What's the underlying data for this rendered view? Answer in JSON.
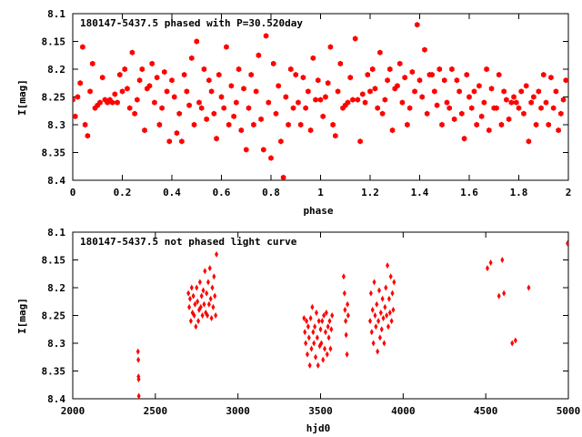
{
  "chart_data": [
    {
      "type": "scatter",
      "title": "180147-5437.5 phased with P=30.520day",
      "xlabel": "phase",
      "ylabel": "I[mag]",
      "xlim": [
        0,
        2
      ],
      "ylim": [
        8.4,
        8.1
      ],
      "y_inverted": true,
      "grid": false,
      "marker": "filled-hexagon",
      "color": "#ff0000",
      "x_ticks": [
        "0",
        "0.2",
        "0.4",
        "0.6",
        "0.8",
        "1",
        "1.2",
        "1.4",
        "1.6",
        "1.8",
        "2"
      ],
      "y_ticks": [
        "8.1",
        "8.15",
        "8.2",
        "8.25",
        "8.3",
        "8.35",
        "8.4"
      ],
      "points": [
        [
          0.0,
          8.255
        ],
        [
          0.01,
          8.285
        ],
        [
          0.02,
          8.25
        ],
        [
          0.03,
          8.225
        ],
        [
          0.04,
          8.16
        ],
        [
          0.05,
          8.3
        ],
        [
          0.06,
          8.32
        ],
        [
          0.07,
          8.24
        ],
        [
          0.08,
          8.19
        ],
        [
          0.09,
          8.27
        ],
        [
          0.1,
          8.265
        ],
        [
          0.11,
          8.26
        ],
        [
          0.12,
          8.215
        ],
        [
          0.13,
          8.255
        ],
        [
          0.14,
          8.26
        ],
        [
          0.15,
          8.255
        ],
        [
          0.16,
          8.26
        ],
        [
          0.17,
          8.245
        ],
        [
          0.18,
          8.26
        ],
        [
          0.19,
          8.21
        ],
        [
          0.2,
          8.24
        ],
        [
          0.21,
          8.2
        ],
        [
          0.22,
          8.235
        ],
        [
          0.23,
          8.27
        ],
        [
          0.24,
          8.17
        ],
        [
          0.25,
          8.28
        ],
        [
          0.26,
          8.255
        ],
        [
          0.27,
          8.22
        ],
        [
          0.28,
          8.2
        ],
        [
          0.29,
          8.31
        ],
        [
          0.3,
          8.235
        ],
        [
          0.31,
          8.23
        ],
        [
          0.32,
          8.19
        ],
        [
          0.33,
          8.26
        ],
        [
          0.34,
          8.215
        ],
        [
          0.35,
          8.3
        ],
        [
          0.36,
          8.27
        ],
        [
          0.37,
          8.205
        ],
        [
          0.38,
          8.24
        ],
        [
          0.39,
          8.33
        ],
        [
          0.4,
          8.22
        ],
        [
          0.41,
          8.25
        ],
        [
          0.42,
          8.315
        ],
        [
          0.43,
          8.28
        ],
        [
          0.44,
          8.33
        ],
        [
          0.45,
          8.21
        ],
        [
          0.46,
          8.24
        ],
        [
          0.47,
          8.265
        ],
        [
          0.48,
          8.18
        ],
        [
          0.49,
          8.3
        ],
        [
          0.5,
          8.15
        ],
        [
          0.51,
          8.26
        ],
        [
          0.52,
          8.27
        ],
        [
          0.53,
          8.2
        ],
        [
          0.54,
          8.29
        ],
        [
          0.55,
          8.22
        ],
        [
          0.56,
          8.24
        ],
        [
          0.57,
          8.28
        ],
        [
          0.58,
          8.325
        ],
        [
          0.59,
          8.21
        ],
        [
          0.6,
          8.25
        ],
        [
          0.61,
          8.27
        ],
        [
          0.62,
          8.16
        ],
        [
          0.63,
          8.3
        ],
        [
          0.64,
          8.23
        ],
        [
          0.65,
          8.285
        ],
        [
          0.66,
          8.26
        ],
        [
          0.67,
          8.2
        ],
        [
          0.68,
          8.31
        ],
        [
          0.69,
          8.235
        ],
        [
          0.7,
          8.345
        ],
        [
          0.71,
          8.27
        ],
        [
          0.72,
          8.21
        ],
        [
          0.73,
          8.3
        ],
        [
          0.74,
          8.24
        ],
        [
          0.75,
          8.175
        ],
        [
          0.76,
          8.29
        ],
        [
          0.77,
          8.345
        ],
        [
          0.78,
          8.14
        ],
        [
          0.79,
          8.26
        ],
        [
          0.8,
          8.36
        ],
        [
          0.81,
          8.19
        ],
        [
          0.82,
          8.28
        ],
        [
          0.83,
          8.23
        ],
        [
          0.84,
          8.33
        ],
        [
          0.85,
          8.395
        ],
        [
          0.86,
          8.25
        ],
        [
          0.87,
          8.3
        ],
        [
          0.88,
          8.2
        ],
        [
          0.89,
          8.27
        ],
        [
          0.9,
          8.21
        ],
        [
          0.91,
          8.26
        ],
        [
          0.92,
          8.3
        ],
        [
          0.93,
          8.215
        ],
        [
          0.94,
          8.27
        ],
        [
          0.95,
          8.24
        ],
        [
          0.96,
          8.31
        ],
        [
          0.97,
          8.18
        ],
        [
          0.98,
          8.255
        ],
        [
          0.99,
          8.22
        ],
        [
          1.0,
          8.255
        ],
        [
          1.01,
          8.285
        ],
        [
          1.02,
          8.25
        ],
        [
          1.03,
          8.225
        ],
        [
          1.04,
          8.16
        ],
        [
          1.05,
          8.3
        ],
        [
          1.06,
          8.32
        ],
        [
          1.07,
          8.24
        ],
        [
          1.08,
          8.19
        ],
        [
          1.09,
          8.27
        ],
        [
          1.1,
          8.265
        ],
        [
          1.11,
          8.26
        ],
        [
          1.12,
          8.215
        ],
        [
          1.13,
          8.255
        ],
        [
          1.14,
          8.145
        ],
        [
          1.15,
          8.255
        ],
        [
          1.16,
          8.33
        ],
        [
          1.17,
          8.245
        ],
        [
          1.18,
          8.26
        ],
        [
          1.19,
          8.21
        ],
        [
          1.2,
          8.24
        ],
        [
          1.21,
          8.2
        ],
        [
          1.22,
          8.235
        ],
        [
          1.23,
          8.27
        ],
        [
          1.24,
          8.17
        ],
        [
          1.25,
          8.28
        ],
        [
          1.26,
          8.255
        ],
        [
          1.27,
          8.22
        ],
        [
          1.28,
          8.2
        ],
        [
          1.29,
          8.31
        ],
        [
          1.3,
          8.235
        ],
        [
          1.31,
          8.23
        ],
        [
          1.32,
          8.19
        ],
        [
          1.33,
          8.26
        ],
        [
          1.34,
          8.215
        ],
        [
          1.35,
          8.3
        ],
        [
          1.36,
          8.27
        ],
        [
          1.37,
          8.205
        ],
        [
          1.38,
          8.24
        ],
        [
          1.39,
          8.12
        ],
        [
          1.4,
          8.22
        ],
        [
          1.41,
          8.25
        ],
        [
          1.42,
          8.165
        ],
        [
          1.43,
          8.28
        ],
        [
          1.44,
          8.21
        ],
        [
          1.45,
          8.21
        ],
        [
          1.46,
          8.24
        ],
        [
          1.47,
          8.265
        ],
        [
          1.48,
          8.2
        ],
        [
          1.49,
          8.3
        ],
        [
          1.5,
          8.22
        ],
        [
          1.51,
          8.26
        ],
        [
          1.52,
          8.27
        ],
        [
          1.53,
          8.2
        ],
        [
          1.54,
          8.29
        ],
        [
          1.55,
          8.22
        ],
        [
          1.56,
          8.24
        ],
        [
          1.57,
          8.28
        ],
        [
          1.58,
          8.325
        ],
        [
          1.59,
          8.21
        ],
        [
          1.6,
          8.25
        ],
        [
          1.61,
          8.27
        ],
        [
          1.62,
          8.24
        ],
        [
          1.63,
          8.3
        ],
        [
          1.64,
          8.23
        ],
        [
          1.65,
          8.285
        ],
        [
          1.66,
          8.26
        ],
        [
          1.67,
          8.2
        ],
        [
          1.68,
          8.31
        ],
        [
          1.69,
          8.235
        ],
        [
          1.7,
          8.27
        ],
        [
          1.71,
          8.27
        ],
        [
          1.72,
          8.21
        ],
        [
          1.73,
          8.3
        ],
        [
          1.74,
          8.24
        ],
        [
          1.75,
          8.255
        ],
        [
          1.76,
          8.29
        ],
        [
          1.77,
          8.26
        ],
        [
          1.78,
          8.25
        ],
        [
          1.79,
          8.26
        ],
        [
          1.8,
          8.27
        ],
        [
          1.81,
          8.24
        ],
        [
          1.82,
          8.28
        ],
        [
          1.83,
          8.23
        ],
        [
          1.84,
          8.33
        ],
        [
          1.85,
          8.26
        ],
        [
          1.86,
          8.25
        ],
        [
          1.87,
          8.3
        ],
        [
          1.88,
          8.24
        ],
        [
          1.89,
          8.27
        ],
        [
          1.9,
          8.21
        ],
        [
          1.91,
          8.26
        ],
        [
          1.92,
          8.3
        ],
        [
          1.93,
          8.215
        ],
        [
          1.94,
          8.27
        ],
        [
          1.95,
          8.24
        ],
        [
          1.96,
          8.31
        ],
        [
          1.97,
          8.28
        ],
        [
          1.98,
          8.255
        ],
        [
          1.99,
          8.22
        ]
      ]
    },
    {
      "type": "scatter",
      "title": "180147-5437.5 not phased light curve",
      "xlabel": "hjd0",
      "ylabel": "I[mag]",
      "xlim": [
        2000,
        5000
      ],
      "ylim": [
        8.4,
        8.1
      ],
      "y_inverted": true,
      "grid": false,
      "marker": "filled-diamond",
      "color": "#ff0000",
      "x_ticks": [
        "2000",
        "2500",
        "3000",
        "3500",
        "4000",
        "4500",
        "5000"
      ],
      "y_ticks": [
        "8.1",
        "8.15",
        "8.2",
        "8.25",
        "8.3",
        "8.35",
        "8.4"
      ],
      "points": [
        [
          2395,
          8.315
        ],
        [
          2397,
          8.33
        ],
        [
          2398,
          8.36
        ],
        [
          2399,
          8.365
        ],
        [
          2400,
          8.395
        ],
        [
          2700,
          8.21
        ],
        [
          2705,
          8.235
        ],
        [
          2710,
          8.22
        ],
        [
          2715,
          8.26
        ],
        [
          2720,
          8.2
        ],
        [
          2725,
          8.245
        ],
        [
          2730,
          8.215
        ],
        [
          2735,
          8.25
        ],
        [
          2740,
          8.23
        ],
        [
          2745,
          8.27
        ],
        [
          2750,
          8.2
        ],
        [
          2755,
          8.225
        ],
        [
          2760,
          8.26
        ],
        [
          2765,
          8.24
        ],
        [
          2770,
          8.19
        ],
        [
          2775,
          8.235
        ],
        [
          2780,
          8.215
        ],
        [
          2785,
          8.25
        ],
        [
          2790,
          8.205
        ],
        [
          2795,
          8.23
        ],
        [
          2800,
          8.17
        ],
        [
          2805,
          8.245
        ],
        [
          2810,
          8.21
        ],
        [
          2815,
          8.25
        ],
        [
          2820,
          8.19
        ],
        [
          2825,
          8.23
        ],
        [
          2830,
          8.165
        ],
        [
          2835,
          8.22
        ],
        [
          2840,
          8.255
        ],
        [
          2845,
          8.2
        ],
        [
          2850,
          8.235
        ],
        [
          2855,
          8.18
        ],
        [
          2860,
          8.215
        ],
        [
          2865,
          8.25
        ],
        [
          2870,
          8.14
        ],
        [
          3400,
          8.255
        ],
        [
          3405,
          8.28
        ],
        [
          3410,
          8.3
        ],
        [
          3415,
          8.26
        ],
        [
          3420,
          8.32
        ],
        [
          3425,
          8.27
        ],
        [
          3430,
          8.29
        ],
        [
          3435,
          8.34
        ],
        [
          3440,
          8.255
        ],
        [
          3445,
          8.31
        ],
        [
          3450,
          8.235
        ],
        [
          3455,
          8.28
        ],
        [
          3460,
          8.3
        ],
        [
          3465,
          8.27
        ],
        [
          3470,
          8.325
        ],
        [
          3475,
          8.245
        ],
        [
          3480,
          8.29
        ],
        [
          3485,
          8.34
        ],
        [
          3490,
          8.26
        ],
        [
          3495,
          8.305
        ],
        [
          3500,
          8.275
        ],
        [
          3505,
          8.3
        ],
        [
          3510,
          8.26
        ],
        [
          3515,
          8.33
        ],
        [
          3520,
          8.25
        ],
        [
          3525,
          8.31
        ],
        [
          3530,
          8.28
        ],
        [
          3535,
          8.245
        ],
        [
          3540,
          8.32
        ],
        [
          3545,
          8.27
        ],
        [
          3550,
          8.29
        ],
        [
          3555,
          8.26
        ],
        [
          3560,
          8.31
        ],
        [
          3565,
          8.275
        ],
        [
          3570,
          8.25
        ],
        [
          3640,
          8.18
        ],
        [
          3645,
          8.21
        ],
        [
          3648,
          8.24
        ],
        [
          3652,
          8.26
        ],
        [
          3655,
          8.285
        ],
        [
          3660,
          8.32
        ],
        [
          3663,
          8.23
        ],
        [
          3667,
          8.25
        ],
        [
          3800,
          8.26
        ],
        [
          3805,
          8.21
        ],
        [
          3810,
          8.28
        ],
        [
          3815,
          8.24
        ],
        [
          3820,
          8.3
        ],
        [
          3825,
          8.19
        ],
        [
          3830,
          8.25
        ],
        [
          3835,
          8.27
        ],
        [
          3840,
          8.23
        ],
        [
          3845,
          8.315
        ],
        [
          3850,
          8.26
        ],
        [
          3855,
          8.205
        ],
        [
          3860,
          8.29
        ],
        [
          3865,
          8.245
        ],
        [
          3870,
          8.275
        ],
        [
          3875,
          8.22
        ],
        [
          3880,
          8.255
        ],
        [
          3885,
          8.3
        ],
        [
          3890,
          8.235
        ],
        [
          3895,
          8.2
        ],
        [
          3900,
          8.25
        ],
        [
          3905,
          8.16
        ],
        [
          3910,
          8.27
        ],
        [
          3915,
          8.22
        ],
        [
          3920,
          8.245
        ],
        [
          3925,
          8.18
        ],
        [
          3930,
          8.26
        ],
        [
          3935,
          8.21
        ],
        [
          3940,
          8.24
        ],
        [
          3945,
          8.19
        ],
        [
          4510,
          8.165
        ],
        [
          4530,
          8.155
        ],
        [
          4580,
          8.215
        ],
        [
          4600,
          8.15
        ],
        [
          4610,
          8.21
        ],
        [
          4660,
          8.3
        ],
        [
          4680,
          8.295
        ],
        [
          4760,
          8.2
        ],
        [
          4995,
          8.12
        ]
      ]
    }
  ]
}
